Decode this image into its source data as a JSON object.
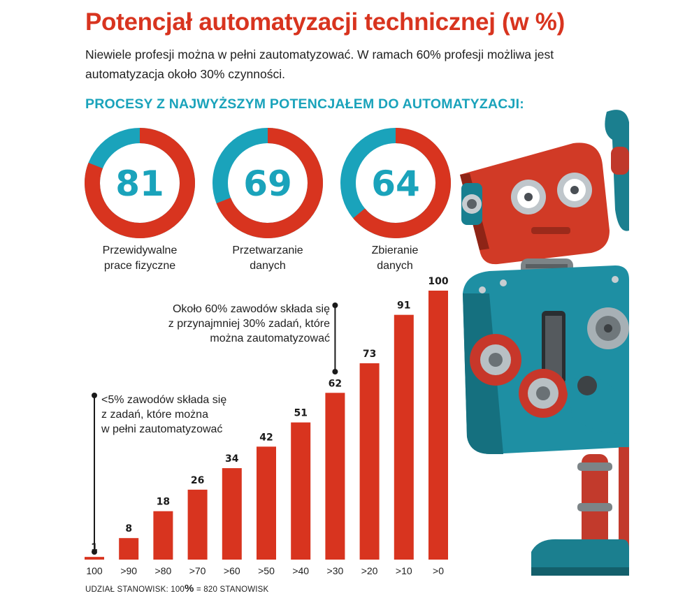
{
  "header": {
    "title": "Potencjał automatyzacji technicznej (w %)",
    "subtitle": "Niewiele profesji można w pełni zautomatyzować. W ramach 60% profesji możliwa jest automatyzacja około 30% czynności.",
    "section_title": "PROCESY Z NAJWYŻSZYM POTENCJAŁEM DO AUTOMATYZACJI:"
  },
  "colors": {
    "red": "#d8341f",
    "teal": "#1aa3bb",
    "text": "#1f1f1f"
  },
  "donuts": [
    {
      "value": 81,
      "label_lines": [
        "Przewidywalne",
        "prace fizyczne"
      ]
    },
    {
      "value": 69,
      "label_lines": [
        "Przetwarzanie",
        "danych"
      ]
    },
    {
      "value": 64,
      "label_lines": [
        "Zbieranie",
        "danych"
      ]
    }
  ],
  "annotations": {
    "left": [
      "<5% zawodów składa się",
      "z zadań, które można",
      "w pełni zautomatyzować"
    ],
    "right": [
      "Około 60% zawodów składa się",
      "z przynajmniej 30% zadań, które",
      "można zautomatyzować"
    ]
  },
  "footnote": {
    "prefix": "UDZIAŁ STANOWISK: 100",
    "percent": "%",
    "suffix": " = 820 STANOWISK"
  },
  "robot_image": "retro-robot-illustration",
  "chart_data": {
    "type": "bar",
    "categories": [
      "100",
      ">90",
      ">80",
      ">70",
      ">60",
      ">50",
      ">40",
      ">30",
      ">20",
      ">10",
      ">0"
    ],
    "values": [
      1,
      8,
      18,
      26,
      34,
      42,
      51,
      62,
      73,
      91,
      100
    ],
    "ylim": [
      0,
      100
    ],
    "grid": false,
    "legend": "none"
  }
}
